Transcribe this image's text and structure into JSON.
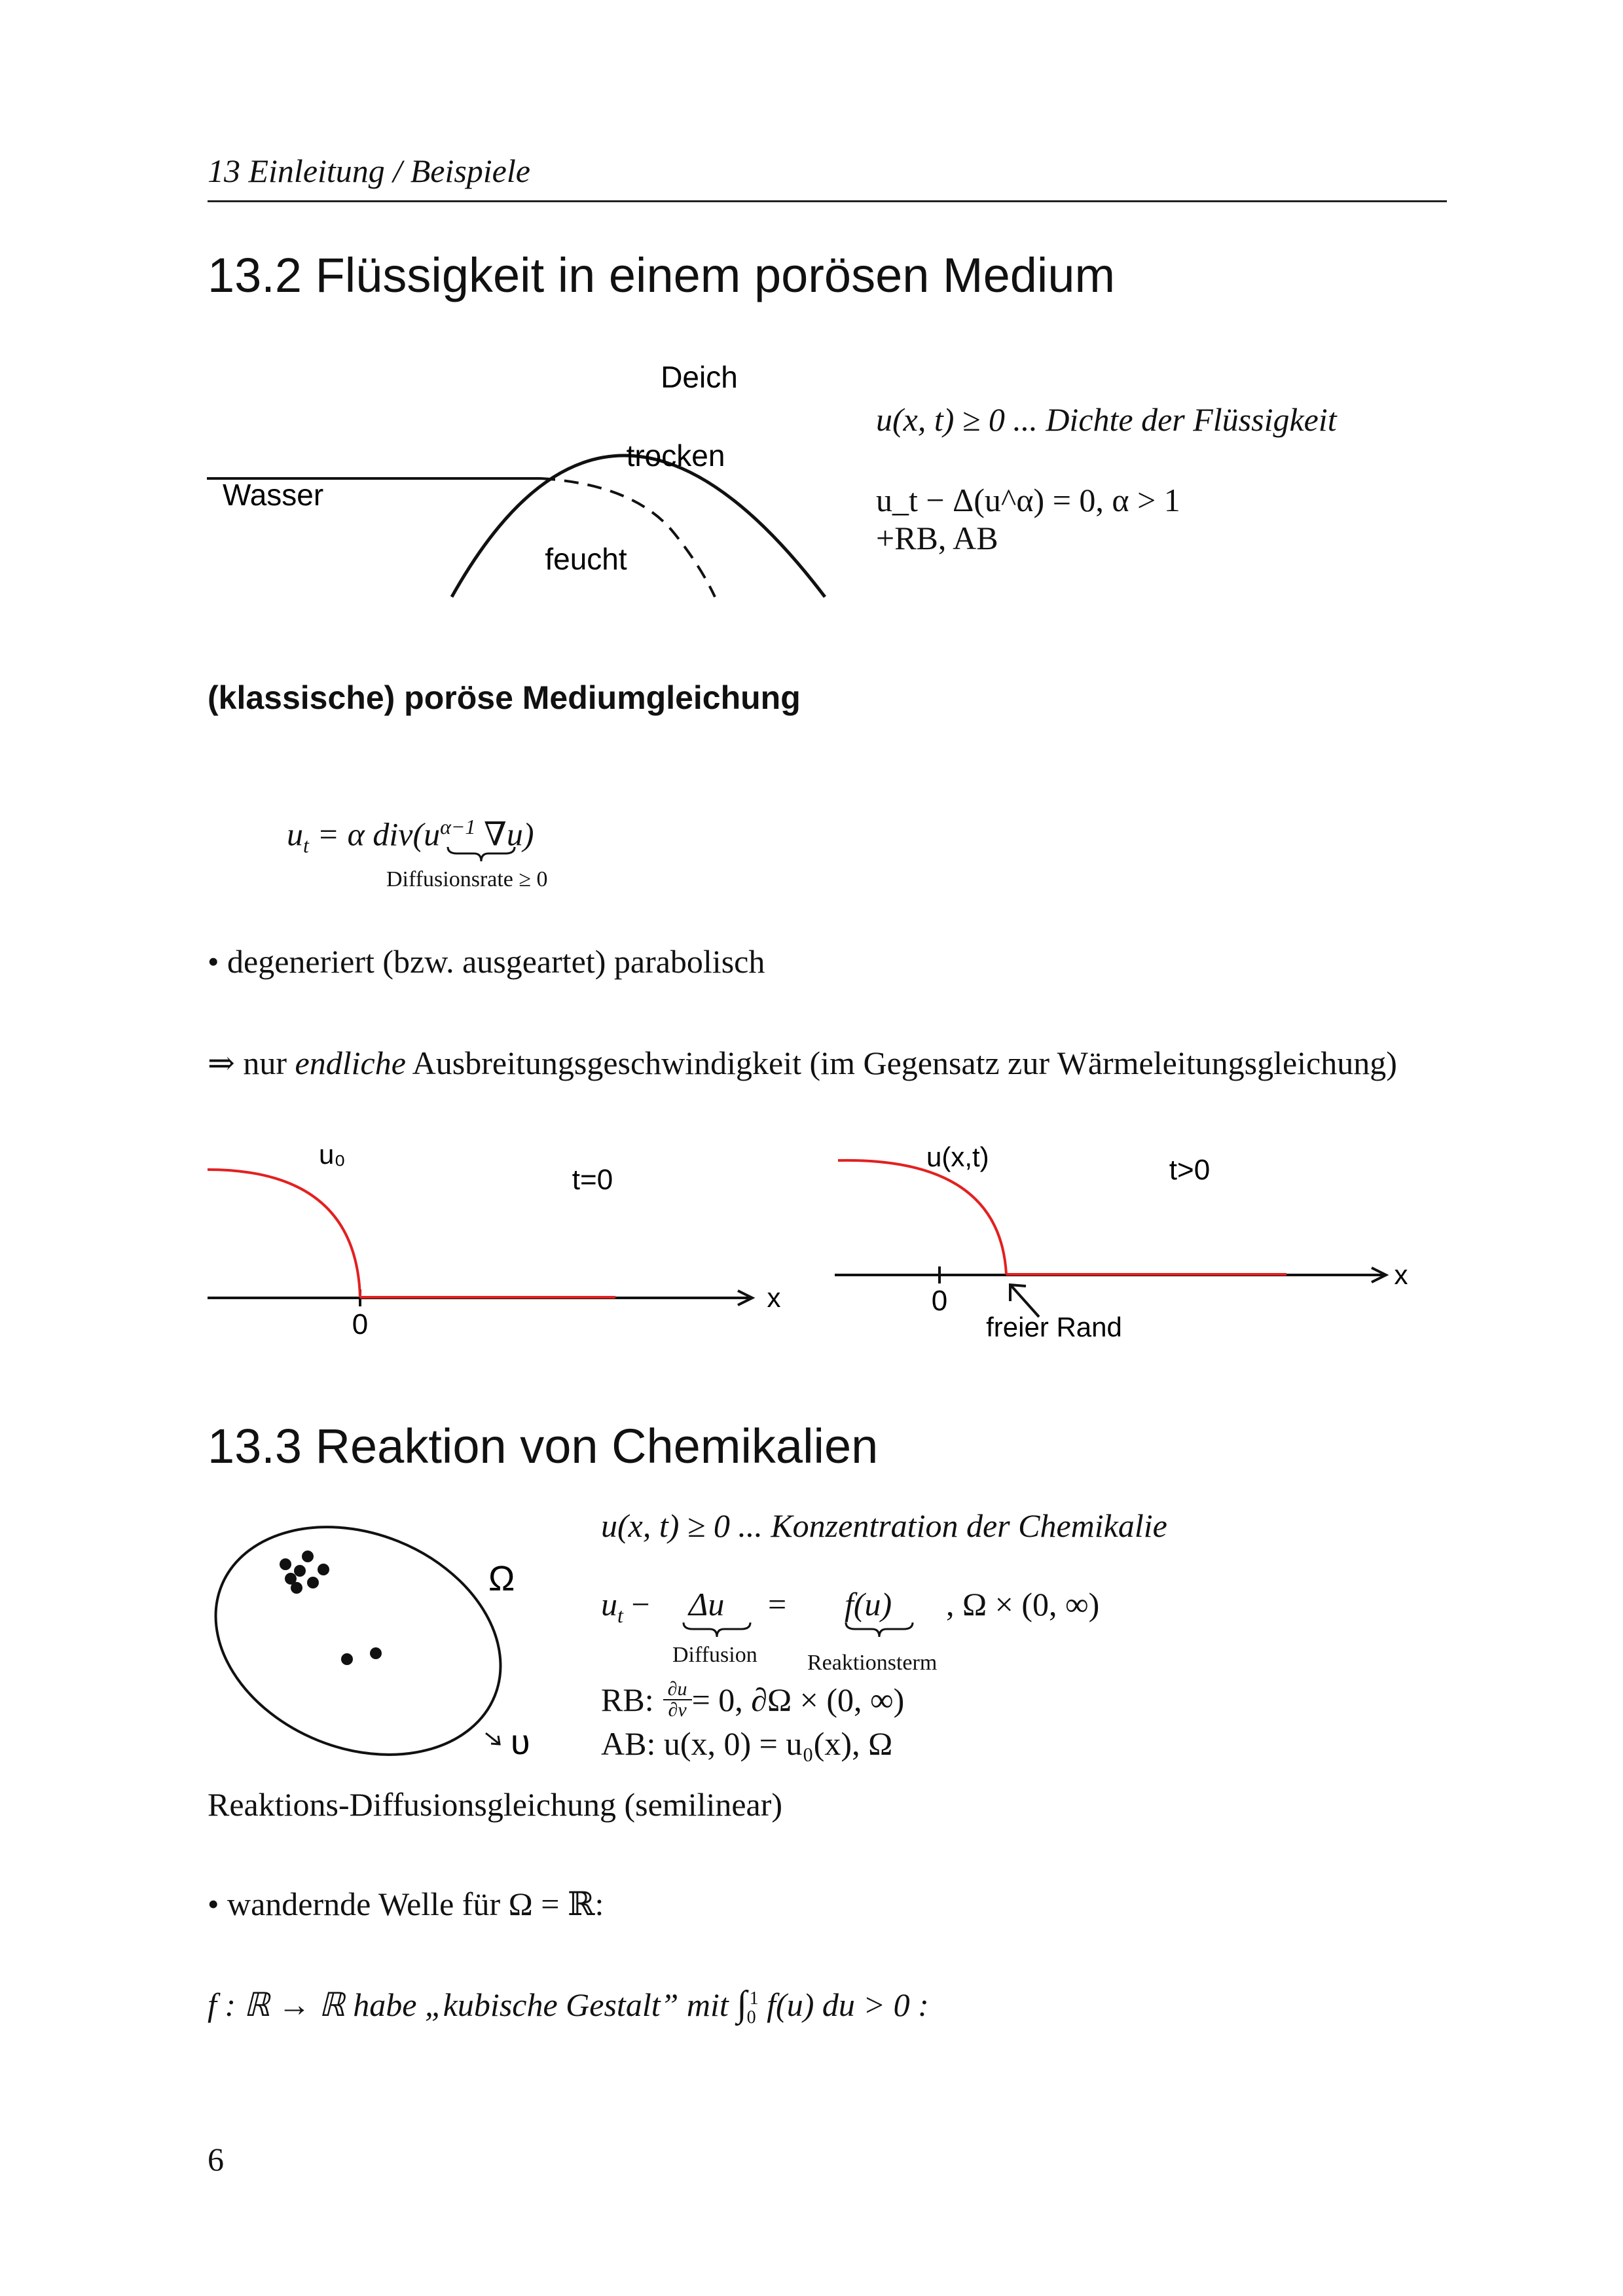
{
  "header": {
    "running_title": "13 Einleitung / Beispiele"
  },
  "section_13_2": {
    "title": "13.2 Flüssigkeit in einem porösen Medium",
    "diagram": {
      "deich": "Deich",
      "trocken": "trocken",
      "wasser": "Wasser",
      "feucht": "feucht"
    },
    "density_line": "u(x, t) ≥ 0 ... Dichte der Flüssigkeit",
    "equation": "u_t − Δ(u^α) = 0, α > 1",
    "conditions": "+RB, AB",
    "subheading": "(klassische) poröse Mediumgleichung",
    "pme_lhs": "u",
    "pme_lhs_sub": "t",
    "pme_mid": " = α div(",
    "pme_u": "u",
    "pme_exp": "α−1",
    "pme_rest": " ∇u)",
    "pme_brace_label": "Diffusionsrate ≥ 0",
    "bullet": "• degeneriert (bzw. ausgeartet) parabolisch",
    "implies_pre": "⇒ nur ",
    "implies_em": "endliche",
    "implies_post": " Ausbreitungsgeschwindigkeit (im Gegensatz zur Wärmeleitungsgleichung)",
    "plot_left": {
      "label_u": "u₀",
      "label_t": "t=0",
      "label_x": "x",
      "label_zero": "0"
    },
    "plot_right": {
      "label_u": "u(x,t)",
      "label_t": "t>0",
      "label_x": "x",
      "label_zero": "0",
      "label_rand": "freier Rand"
    }
  },
  "section_13_3": {
    "title": "13.3 Reaktion von Chemikalien",
    "omega": "Ω",
    "nu": "υ",
    "conc_line": "u(x, t) ≥ 0 ... Konzentration der Chemikalie",
    "rd_lhs": "u",
    "rd_lhs_sub": "t",
    "rd_minus": " − ",
    "rd_diff": "Δu",
    "rd_eq": "=",
    "rd_react": "f(u)",
    "rd_domain": ", Ω × (0, ∞)",
    "label_diffusion": "Diffusion",
    "label_reaktion": "Reaktionsterm",
    "rb_label": "RB:",
    "rb_frac_num": "∂u",
    "rb_frac_den": "∂ν",
    "rb_rest": " = 0, ∂Ω × (0, ∞)",
    "ab_line": "AB: u(x, 0) = u₀(x), Ω",
    "rd_name": "Reaktions-Diffusionsgleichung (semilinear)",
    "bullet": "• wandernde Welle für Ω = ℝ:",
    "cubic_pre": "f : ℝ → ℝ habe „kubische Gestalt” mit ",
    "cubic_int": "∫",
    "cubic_up": "1",
    "cubic_lo": "0",
    "cubic_post": " f(u) du > 0 :"
  },
  "footer": {
    "page_number": "6"
  },
  "colors": {
    "curve": "#e32020",
    "ink": "#111111"
  }
}
